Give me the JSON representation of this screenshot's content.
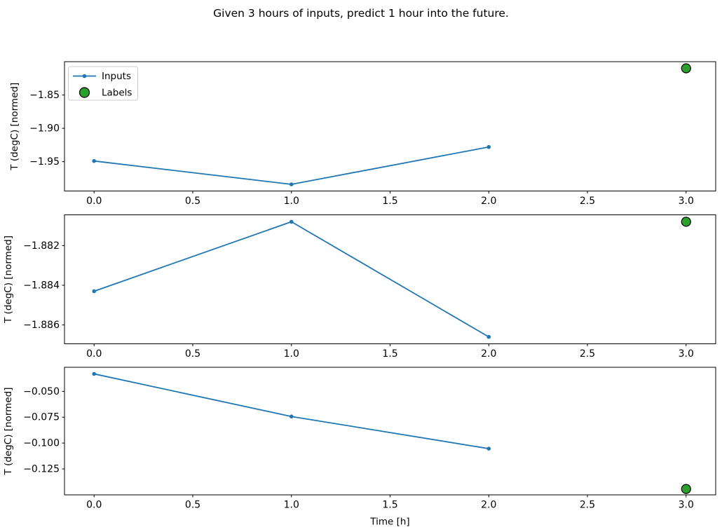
{
  "chart_data": {
    "type": "line",
    "title": "Given 3 hours of inputs, predict 1 hour into the future.",
    "xlabel": "Time [h]",
    "xlim": [
      -0.15,
      3.15
    ],
    "x_ticks": [
      0.0,
      0.5,
      1.0,
      1.5,
      2.0,
      2.5,
      3.0
    ],
    "x_tick_labels": [
      "0.0",
      "0.5",
      "1.0",
      "1.5",
      "2.0",
      "2.5",
      "3.0"
    ],
    "grid": false,
    "legend": {
      "entries": [
        "Inputs",
        "Labels"
      ],
      "position": "upper left of first subplot"
    },
    "colors": {
      "inputs_line": "#1f77b4",
      "labels_marker_fill": "#2ca02c",
      "labels_marker_edge": "#000000",
      "axis": "#000000",
      "legend_border": "#cccccc"
    },
    "subplots": [
      {
        "ylabel": "T (degC) [normed]",
        "ylim": [
          -1.994,
          -1.8
        ],
        "y_ticks": [
          -1.85,
          -1.9,
          -1.95
        ],
        "y_tick_labels": [
          "−1.85",
          "−1.90",
          "−1.95"
        ],
        "series": [
          {
            "name": "Inputs",
            "type": "line+marker",
            "x": [
              0,
              1,
              2
            ],
            "y": [
              -1.949,
              -1.984,
              -1.928
            ]
          },
          {
            "name": "Labels",
            "type": "scatter",
            "x": [
              3
            ],
            "y": [
              -1.81
            ]
          }
        ]
      },
      {
        "ylabel": "T (degC) [normed]",
        "ylim": [
          -1.88695,
          -1.88045
        ],
        "y_ticks": [
          -1.882,
          -1.884,
          -1.886
        ],
        "y_tick_labels": [
          "−1.882",
          "−1.884",
          "−1.886"
        ],
        "series": [
          {
            "name": "Inputs",
            "type": "line+marker",
            "x": [
              0,
              1,
              2
            ],
            "y": [
              -1.8843,
              -1.8808,
              -1.8866
            ]
          },
          {
            "name": "Labels",
            "type": "scatter",
            "x": [
              3
            ],
            "y": [
              -1.8808
            ]
          }
        ]
      },
      {
        "ylabel": "T (degC) [normed]",
        "ylim": [
          -0.1501,
          -0.0267
        ],
        "y_ticks": [
          -0.05,
          -0.075,
          -0.1,
          -0.125
        ],
        "y_tick_labels": [
          "−0.050",
          "−0.075",
          "−0.100",
          "−0.125"
        ],
        "series": [
          {
            "name": "Inputs",
            "type": "line+marker",
            "x": [
              0,
              1,
              2
            ],
            "y": [
              -0.0331,
              -0.0743,
              -0.1054
            ]
          },
          {
            "name": "Labels",
            "type": "scatter",
            "x": [
              3
            ],
            "y": [
              -0.1444
            ]
          }
        ]
      }
    ]
  }
}
